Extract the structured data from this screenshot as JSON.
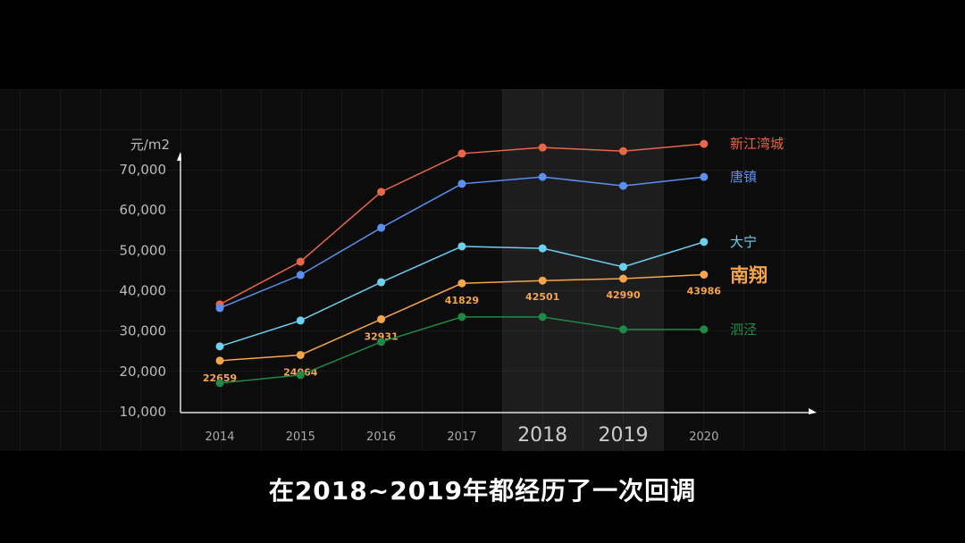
{
  "chart_data": {
    "type": "line",
    "ylabel": "元/m2",
    "ylim": [
      10000,
      70000
    ],
    "yticks": [
      "10,000",
      "20,000",
      "30,000",
      "40,000",
      "50,000",
      "60,000",
      "70,000"
    ],
    "categories": [
      "2014",
      "2015",
      "2016",
      "2017",
      "2018",
      "2019",
      "2020"
    ],
    "highlight_categories": [
      "2018",
      "2019"
    ],
    "grid": true,
    "legend": "right, inline labels at line ends",
    "series": [
      {
        "name": "新江湾城",
        "color": "#e8674a",
        "values": [
          36600,
          47200,
          64500,
          74000,
          75500,
          74600,
          76400
        ]
      },
      {
        "name": "唐镇",
        "color": "#5b8ff0",
        "values": [
          35700,
          43900,
          55600,
          66500,
          68200,
          66000,
          68200
        ]
      },
      {
        "name": "大宁",
        "color": "#6cd0f0",
        "values": [
          26200,
          32600,
          42100,
          51000,
          50500,
          45900,
          52100
        ]
      },
      {
        "name": "南翔",
        "color": "#f5a54a",
        "emphasis": true,
        "values": [
          22659,
          24064,
          32931,
          41829,
          42501,
          42990,
          43986
        ],
        "data_labels": [
          "22659",
          "24064",
          "32931",
          "41829",
          "42501",
          "42990",
          "43986"
        ]
      },
      {
        "name": "泗泾",
        "color": "#1e8a45",
        "values": [
          17100,
          19100,
          27300,
          33500,
          33500,
          30400,
          30400
        ]
      }
    ]
  },
  "subtitle": "在2018~2019年都经历了一次回调"
}
